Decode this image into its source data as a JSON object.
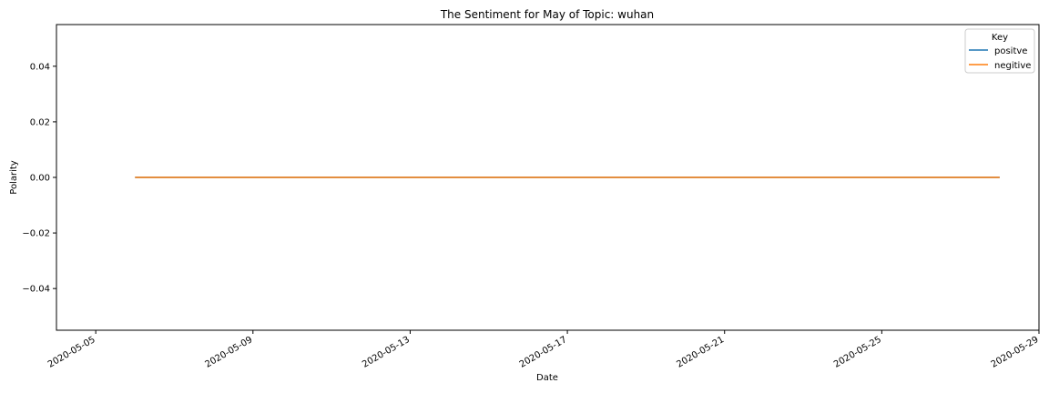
{
  "chart_data": {
    "type": "line",
    "title": "The Sentiment for May of Topic: wuhan",
    "xlabel": "Date",
    "ylabel": "Polarity",
    "x_ticks": [
      "2020-05-05",
      "2020-05-09",
      "2020-05-13",
      "2020-05-17",
      "2020-05-21",
      "2020-05-25",
      "2020-05-29"
    ],
    "xlim": [
      "2020-05-04",
      "2020-05-29"
    ],
    "y_ticks": [
      "0.04",
      "0.02",
      "0.00",
      "−0.02",
      "−0.04"
    ],
    "y_tick_values": [
      0.04,
      0.02,
      0.0,
      -0.02,
      -0.04
    ],
    "ylim": [
      -0.055,
      0.055
    ],
    "legend": {
      "title": "Key",
      "placement": "top-right"
    },
    "grid": false,
    "series": [
      {
        "name": "positve",
        "color": "#1f77b4",
        "x": [
          "2020-05-06",
          "2020-05-28"
        ],
        "values": [
          0.0,
          0.0
        ]
      },
      {
        "name": "negitive",
        "color": "#ff7f0e",
        "x": [
          "2020-05-06",
          "2020-05-28"
        ],
        "values": [
          0.0,
          0.0
        ]
      }
    ]
  }
}
